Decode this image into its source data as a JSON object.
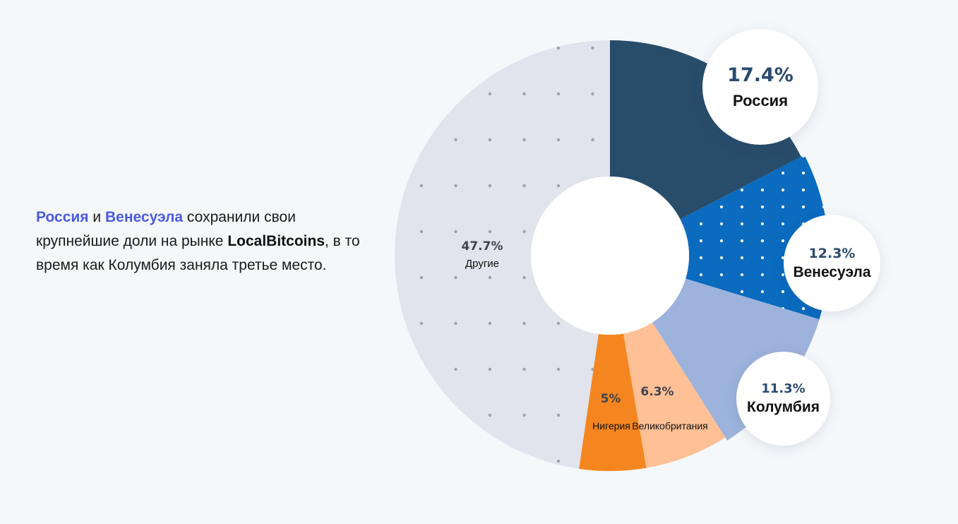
{
  "caption": {
    "part1": "Россия",
    "part2": " и ",
    "part3": "Венесуэла",
    "part4": " сохранили свои крупнейшие доли на рынке ",
    "part5": "LocalBitcoins",
    "part6": ", в то время как Колумбия заняла третье место."
  },
  "colors": {
    "russia": "#284d6b",
    "venezuela": "#0a6bbf",
    "colombia": "#9db3dc",
    "uk": "#ffc095",
    "nigeria": "#f5861f",
    "others": "#e1e4ec",
    "highlight": "#4a5be0"
  },
  "chart_data": {
    "type": "pie",
    "style": "donut",
    "slices": [
      {
        "name": "Россия",
        "value": 17.4,
        "label": "17.4%",
        "color": "#284d6b",
        "pattern": "none"
      },
      {
        "name": "Венесуэла",
        "value": 12.3,
        "label": "12.3%",
        "color": "#0a6bbf",
        "pattern": "dots"
      },
      {
        "name": "Колумбия",
        "value": 11.3,
        "label": "11.3%",
        "color": "#9db3dc",
        "pattern": "none"
      },
      {
        "name": "Великобритания",
        "value": 6.3,
        "label": "6.3%",
        "color": "#ffc095",
        "pattern": "none"
      },
      {
        "name": "Нигерия",
        "value": 5,
        "label": "5%",
        "color": "#f5861f",
        "pattern": "none"
      },
      {
        "name": "Другие",
        "value": 47.7,
        "label": "47.7%",
        "color": "#e1e4ec",
        "pattern": "dots"
      }
    ]
  }
}
